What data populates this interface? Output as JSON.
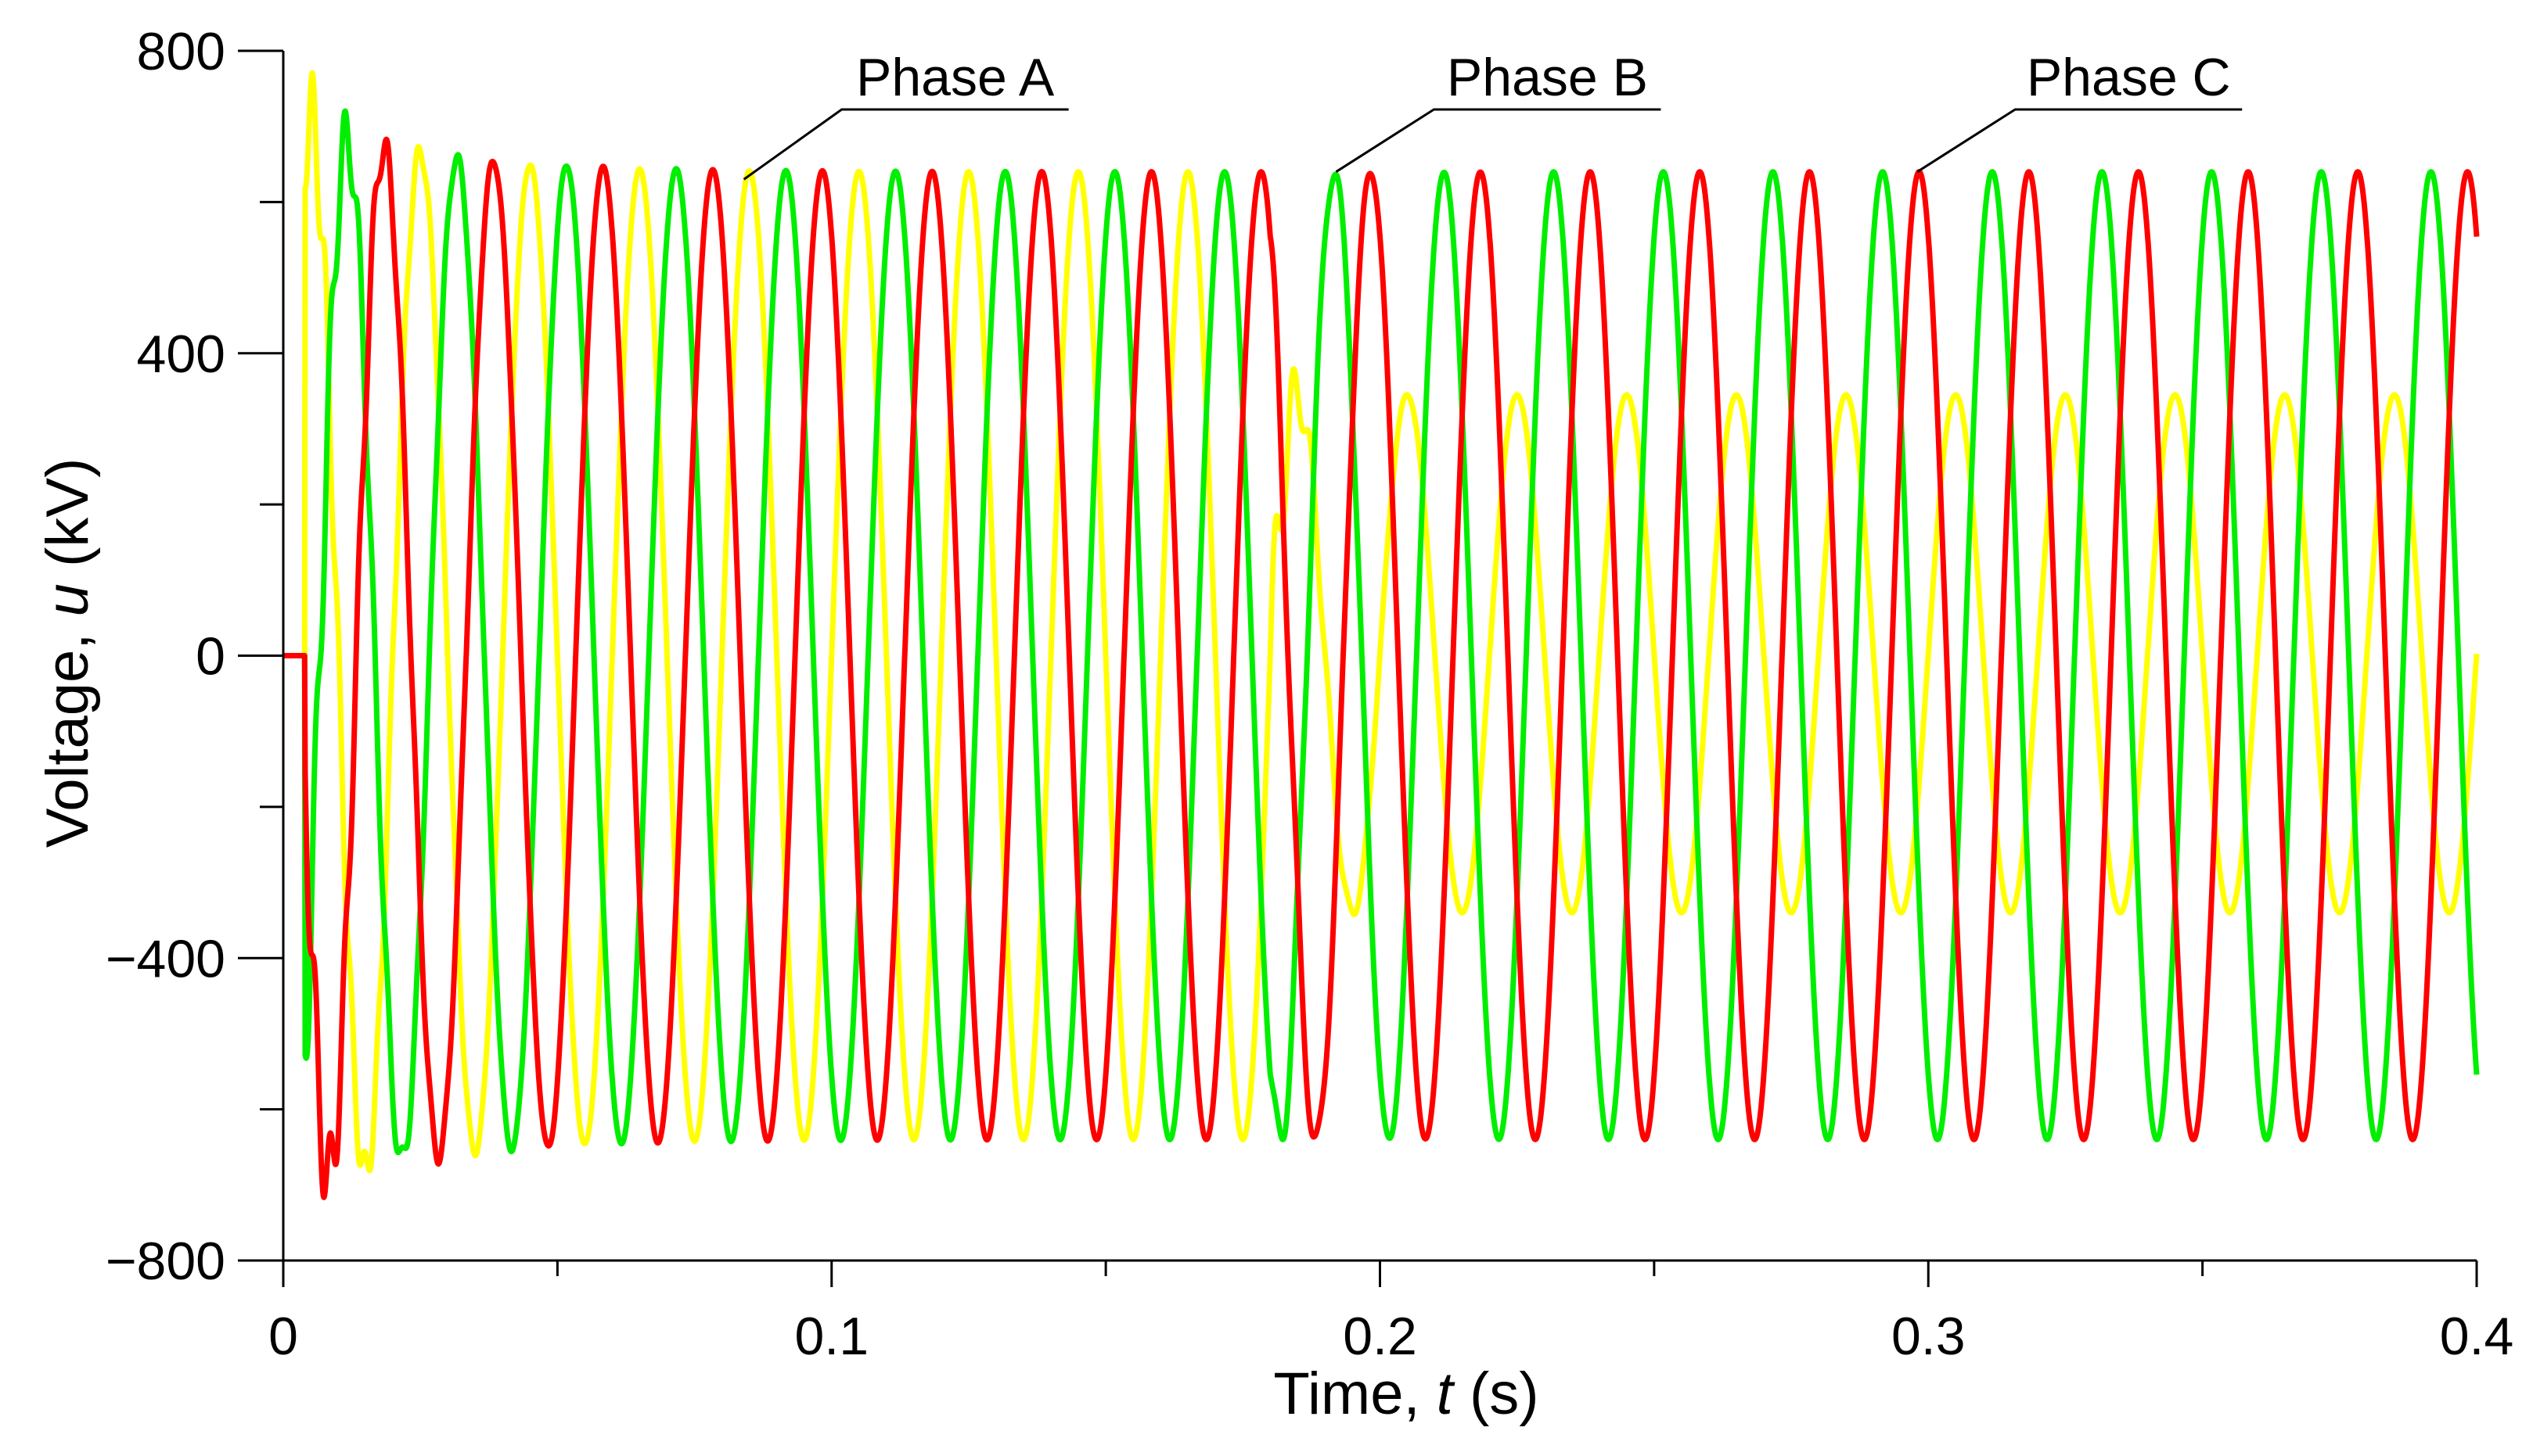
{
  "chart_data": {
    "type": "line",
    "title": "",
    "xlabel_prefix": "Time, ",
    "xlabel_var": "t",
    "xlabel_suffix": " (s)",
    "ylabel_prefix": "Voltage, ",
    "ylabel_var": "u",
    "ylabel_suffix": " (kV)",
    "xlim": [
      0,
      0.4
    ],
    "ylim": [
      -800,
      800
    ],
    "x_ticks": [
      0,
      0.1,
      0.2,
      0.3,
      0.4
    ],
    "x_tick_labels": [
      "0",
      "0.1",
      "0.2",
      "0.3",
      "0.4"
    ],
    "x_minor_step": 0.05,
    "y_ticks": [
      800,
      400,
      0,
      -400,
      -800
    ],
    "y_tick_labels": [
      "800",
      "400",
      "0",
      "−400",
      "−800"
    ],
    "y_minor_step": 200,
    "frequency_hz": 50,
    "grid": false,
    "legend_style": "callout labels",
    "series": [
      {
        "name": "Phase A",
        "color": "#ffff00",
        "z": 0,
        "steady_state_amplitude_kV": 640,
        "post_event_max_kV": 345,
        "post_event_min_kV": -340,
        "event_time_s": 0.18,
        "phase_deg": 0,
        "label_anchor": {
          "x": 0.084,
          "y": 630
        }
      },
      {
        "name": "Phase B",
        "color": "#00ee00",
        "z": 1,
        "steady_state_amplitude_kV": 640,
        "phase_deg": -120,
        "label_anchor": {
          "x": 0.192,
          "y": 640
        }
      },
      {
        "name": "Phase C",
        "color": "#ff0000",
        "z": 2,
        "steady_state_amplitude_kV": 640,
        "phase_deg": 120,
        "label_anchor": {
          "x": 0.298,
          "y": 640
        }
      }
    ]
  }
}
